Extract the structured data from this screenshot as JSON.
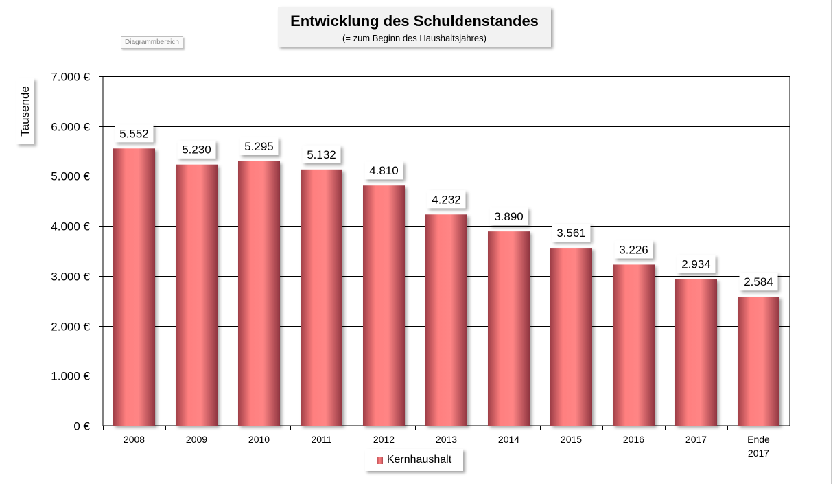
{
  "chart_data": {
    "type": "bar",
    "title": "Entwicklung des Schuldenstandes",
    "subtitle": "(= zum Beginn des Haushaltsjahres)",
    "ylabel": "Tausende",
    "xlabel": "",
    "ylim": [
      0,
      7000
    ],
    "yticks": [
      0,
      1000,
      2000,
      3000,
      4000,
      5000,
      6000,
      7000
    ],
    "ytick_labels": [
      "0 €",
      "1.000 €",
      "2.000 €",
      "3.000 €",
      "4.000 €",
      "5.000 €",
      "6.000 €",
      "7.000 €"
    ],
    "grid": true,
    "legend": "bottom",
    "categories": [
      "2008",
      "2009",
      "2010",
      "2011",
      "2012",
      "2013",
      "2014",
      "2015",
      "2016",
      "2017",
      "Ende 2017"
    ],
    "series": [
      {
        "name": "Kernhaushalt",
        "color": "#ff7f7f",
        "values": [
          5552,
          5230,
          5295,
          5132,
          4810,
          4232,
          3890,
          3561,
          3226,
          2934,
          2584
        ],
        "labels": [
          "5.552",
          "5.230",
          "5.295",
          "5.132",
          "4.810",
          "4.232",
          "3.890",
          "3.561",
          "3.226",
          "2.934",
          "2.584"
        ]
      }
    ]
  },
  "ui": {
    "chart_area_tag": "Diagrammbereich"
  }
}
